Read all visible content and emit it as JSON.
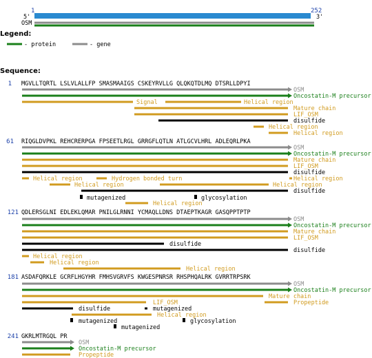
{
  "header": {
    "start_num": "1",
    "end_num": "252",
    "five_prime": "5'",
    "three_prime": "3'",
    "track_label": "OSM"
  },
  "legend": {
    "title": "Legend:",
    "protein_label": "- protein",
    "gene_label": "- gene"
  },
  "sequence_title": "Sequence:",
  "colors": {
    "gene": "#8c8c8c",
    "protein": "#1a7f1a",
    "feature": "#d19b1f",
    "disulfide": "#000000",
    "number": "#1a3fa8",
    "bar": "#2a8ad0"
  },
  "blocks": [
    {
      "start": "1",
      "sequence": "MGVLLTQRTL LSLVLALLFP SMASMAAIGS CSKEYRVLLG QLQKQTDLMQ DTSRLLDPYI",
      "tracks": [
        {
          "type": "gene",
          "label": "OSM"
        },
        {
          "type": "protein",
          "label": "Oncostatin-M precursor"
        },
        {
          "type": "feature",
          "label": "Signal"
        },
        {
          "type": "feature",
          "label": "Helical region"
        },
        {
          "type": "feature",
          "label": "Mature chain"
        },
        {
          "type": "feature",
          "label": "LIF_OSM"
        },
        {
          "type": "disulfide",
          "label": "disulfide"
        },
        {
          "type": "feature",
          "label": "Helical region"
        },
        {
          "type": "feature",
          "label": "Helical region"
        }
      ]
    },
    {
      "start": "61",
      "sequence": "RIQGLDVPKL REHCRERPGA FPSEETLRGL GRRGFLQTLN ATLGCVLHRL ADLEQRLPKA",
      "tracks": [
        {
          "type": "gene",
          "label": "OSM"
        },
        {
          "type": "protein",
          "label": "Oncostatin-M precursor"
        },
        {
          "type": "feature",
          "label": "Mature chain"
        },
        {
          "type": "feature",
          "label": "LIF_OSM"
        },
        {
          "type": "disulfide",
          "label": "disulfide"
        },
        {
          "type": "feature",
          "label": "Helical region"
        },
        {
          "type": "feature",
          "label": "Hydrogen bonded turn"
        },
        {
          "type": "feature",
          "label": "Helical region"
        },
        {
          "type": "feature",
          "label": "Helical region"
        },
        {
          "type": "feature",
          "label": "Helical region"
        },
        {
          "type": "disulfide",
          "label": "disulfide"
        },
        {
          "type": "mark",
          "label": "mutagenized"
        },
        {
          "type": "mark",
          "label": "glycosylation"
        },
        {
          "type": "feature",
          "label": "Helical region"
        }
      ]
    },
    {
      "start": "121",
      "sequence": "QDLERSGLNI EDLEKLQMAR PNILGLRNNI YCMAQLLDNS DTAEPTKAGR GASQPPTPTP",
      "tracks": [
        {
          "type": "gene",
          "label": "OSM"
        },
        {
          "type": "protein",
          "label": "Oncostatin-M precursor"
        },
        {
          "type": "feature",
          "label": "Mature chain"
        },
        {
          "type": "feature",
          "label": "LIF_OSM"
        },
        {
          "type": "disulfide",
          "label": "disulfide"
        },
        {
          "type": "disulfide",
          "label": "disulfide"
        },
        {
          "type": "feature",
          "label": "Helical region"
        },
        {
          "type": "feature",
          "label": "Helical region"
        },
        {
          "type": "feature",
          "label": "Helical region"
        }
      ]
    },
    {
      "start": "181",
      "sequence": "ASDAFQRKLE GCRFLHGYHR FMHSVGRVFS KWGESPNRSR RHSPHQALRK GVRRTRPSRK",
      "tracks": [
        {
          "type": "gene",
          "label": "OSM"
        },
        {
          "type": "protein",
          "label": "Oncostatin-M precursor"
        },
        {
          "type": "feature",
          "label": "Mature chain"
        },
        {
          "type": "feature",
          "label": "LIF_OSM"
        },
        {
          "type": "feature",
          "label": "Propeptide"
        },
        {
          "type": "disulfide",
          "label": "disulfide"
        },
        {
          "type": "disulfide",
          "label": "mutagenized"
        },
        {
          "type": "feature",
          "label": "Helical region"
        },
        {
          "type": "mark",
          "label": "mutagenized"
        },
        {
          "type": "mark",
          "label": "glycosylation"
        },
        {
          "type": "mark",
          "label": "mutagenized"
        }
      ]
    },
    {
      "start": "241",
      "sequence": "GKRLMTRGQL PR",
      "tracks": [
        {
          "type": "gene",
          "label": "OSM"
        },
        {
          "type": "protein",
          "label": "Oncostatin-M precursor"
        },
        {
          "type": "feature",
          "label": "Propeptide"
        }
      ]
    }
  ]
}
